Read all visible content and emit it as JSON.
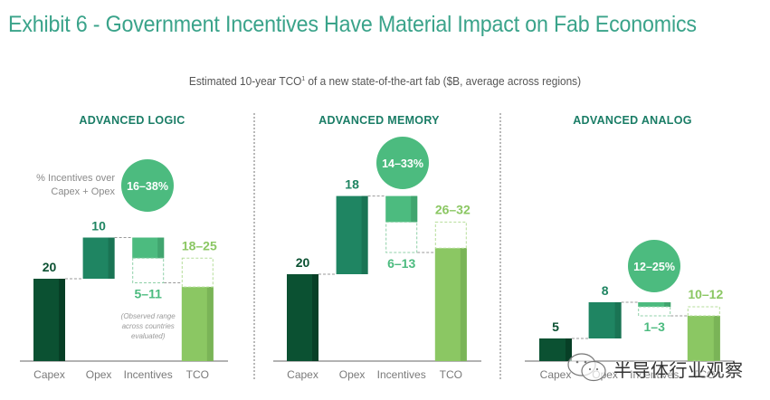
{
  "title": "Exhibit 6 - Government Incentives Have Material Impact on Fab Economics",
  "subtitle_main": "Estimated 10-year TCO",
  "subtitle_sup": "1",
  "subtitle_rest": " of a new state-of-the-art fab ($B, average across regions)",
  "watermark": "半导体行业观察",
  "colors": {
    "capex": "#0b5132",
    "capex_shade": "#073f26",
    "opex": "#1f8562",
    "opex_shade": "#1a7454",
    "incentives": "#4cbb7f",
    "incentives_shade": "#41a56f",
    "tco": "#8bc763",
    "tco_shade": "#7ab457",
    "title": "#3aa38a",
    "panel_title": "#1a7d66",
    "range_incentive": "#4cbb7f",
    "range_tco": "#8bc763",
    "circle": "#4cbb7f"
  },
  "chart_data": [
    {
      "type": "bar",
      "subtype": "waterfall",
      "title": "ADVANCED LOGIC",
      "categories": [
        "Capex",
        "Opex",
        "Incentives",
        "TCO"
      ],
      "values": {
        "Capex": 20,
        "Opex": 10,
        "Incentives_min": 5,
        "Incentives_max": 11,
        "TCO_min": 18,
        "TCO_max": 25
      },
      "labels": {
        "Capex": "20",
        "Opex": "10",
        "Incentives": "5–11",
        "TCO": "18–25"
      },
      "circle_label": "16–38%",
      "circle_caption": [
        "% Incentives over",
        "Capex + Opex"
      ],
      "note": [
        "(Observed range",
        "across countries",
        "evaluated)"
      ]
    },
    {
      "type": "bar",
      "subtype": "waterfall",
      "title": "ADVANCED MEMORY",
      "categories": [
        "Capex",
        "Opex",
        "Incentives",
        "TCO"
      ],
      "values": {
        "Capex": 20,
        "Opex": 18,
        "Incentives_min": 6,
        "Incentives_max": 13,
        "TCO_min": 26,
        "TCO_max": 32
      },
      "labels": {
        "Capex": "20",
        "Opex": "18",
        "Incentives": "6–13",
        "TCO": "26–32"
      },
      "circle_label": "14–33%"
    },
    {
      "type": "bar",
      "subtype": "waterfall",
      "title": "ADVANCED ANALOG",
      "categories": [
        "Capex",
        "Opex",
        "Incentives",
        "TCO"
      ],
      "values": {
        "Capex": 5,
        "Opex": 8,
        "Incentives_min": 1,
        "Incentives_max": 3,
        "TCO_min": 10,
        "TCO_max": 12
      },
      "labels": {
        "Capex": "5",
        "Opex": "8",
        "Incentives": "1–3",
        "TCO": "10–12"
      },
      "circle_label": "12–25%"
    }
  ]
}
